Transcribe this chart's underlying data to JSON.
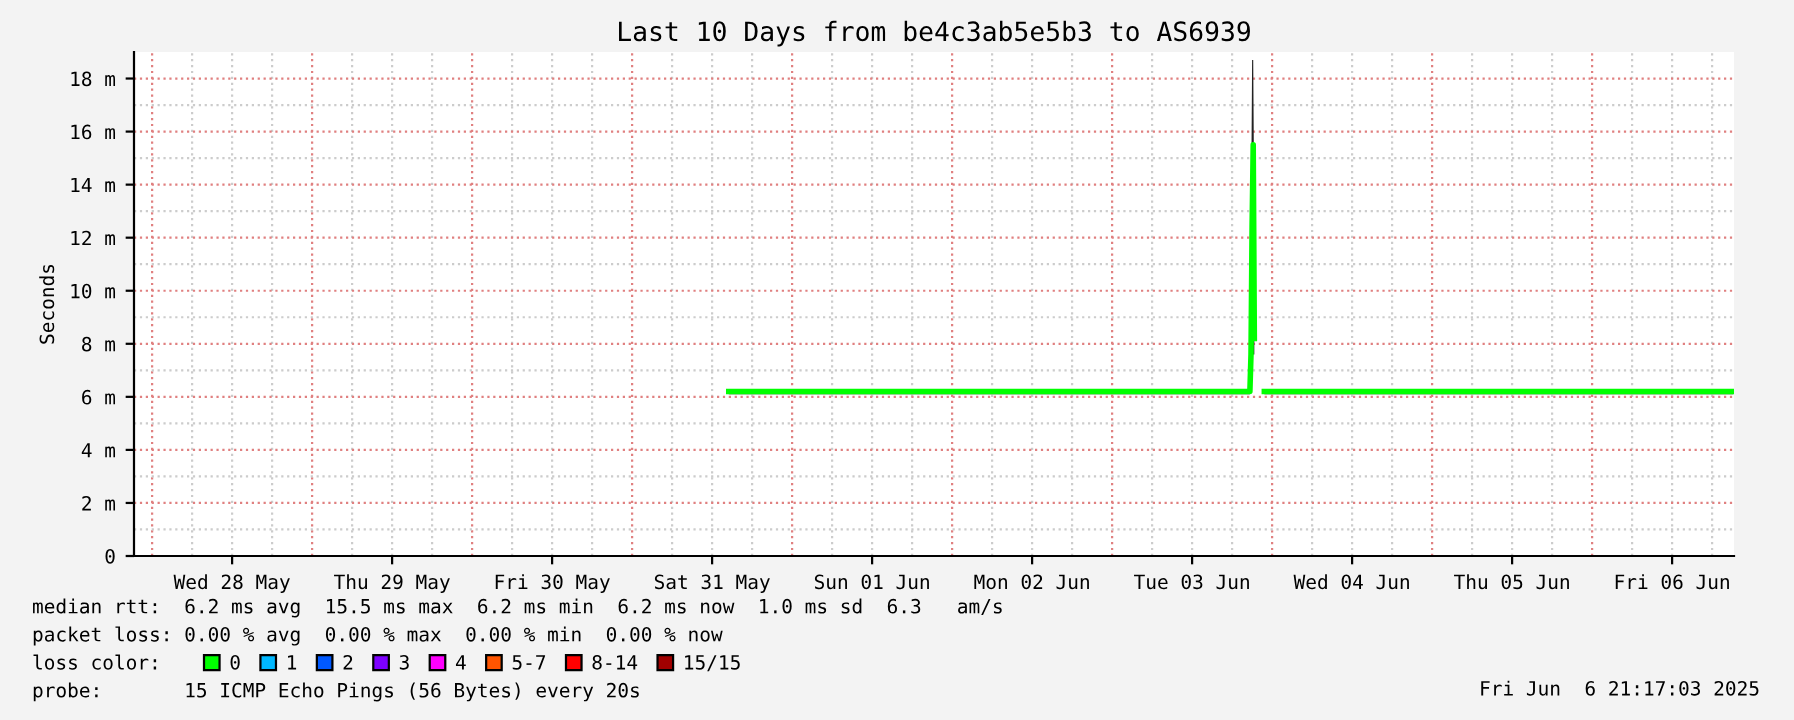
{
  "chart_data": {
    "type": "line",
    "title": "Last 10 Days from be4c3ab5e5b3 to AS6939",
    "ylabel": "Seconds",
    "x": [
      "2025-05-31T14:30",
      "2025-06-01T06:00",
      "2025-06-01T18:00",
      "2025-06-02T06:00",
      "2025-06-02T18:00",
      "2025-06-03T06:00",
      "2025-06-03T20:40",
      "2025-06-03T20:50",
      "2025-06-03T21:00",
      "2025-06-03T21:10",
      "2025-06-03T21:20",
      "2025-06-03T21:40",
      "2025-06-03T22:50",
      "2025-06-04T12:00",
      "2025-06-05T00:00",
      "2025-06-05T12:00",
      "2025-06-06T00:00",
      "2025-06-06T12:00",
      "2025-06-06T21:10"
    ],
    "series": [
      {
        "name": "0",
        "color": "#00ff00",
        "values": [
          6.2,
          6.2,
          6.2,
          6.2,
          6.2,
          6.2,
          6.2,
          7.6,
          12.5,
          15.5,
          8.2,
          null,
          6.2,
          6.2,
          6.2,
          6.2,
          6.2,
          6.2,
          6.2
        ],
        "lower": [
          6.1,
          6.1,
          6.1,
          6.1,
          6.1,
          6.1,
          6.1,
          7.5,
          7.6,
          7.6,
          7.6,
          null,
          6.1,
          6.1,
          6.1,
          6.1,
          6.1,
          6.1,
          6.1
        ],
        "upper": [
          6.3,
          6.3,
          6.3,
          6.3,
          6.3,
          6.3,
          6.3,
          12.5,
          18.7,
          18.7,
          12.5,
          null,
          6.3,
          6.3,
          6.3,
          6.3,
          6.3,
          6.3,
          6.3
        ]
      },
      {
        "name": "1",
        "color": "#00b8ff",
        "values": [
          null,
          null,
          null,
          null,
          null,
          null,
          null,
          null,
          null,
          null,
          null,
          null,
          null,
          null,
          null,
          null,
          null,
          null,
          null
        ]
      },
      {
        "name": "2",
        "color": "#0059ff",
        "values": [
          null,
          null,
          null,
          null,
          null,
          null,
          null,
          null,
          null,
          null,
          null,
          null,
          null,
          null,
          null,
          null,
          null,
          null,
          null
        ]
      },
      {
        "name": "3",
        "color": "#7e00ff",
        "values": [
          null,
          null,
          null,
          null,
          null,
          null,
          null,
          null,
          null,
          null,
          null,
          null,
          null,
          null,
          null,
          null,
          null,
          null,
          null
        ]
      },
      {
        "name": "4",
        "color": "#ff00ff",
        "values": [
          null,
          null,
          null,
          null,
          null,
          null,
          null,
          null,
          null,
          null,
          null,
          null,
          null,
          null,
          null,
          null,
          null,
          null,
          null
        ]
      },
      {
        "name": "5-7",
        "color": "#ff5500",
        "values": [
          null,
          null,
          null,
          null,
          null,
          null,
          null,
          null,
          null,
          null,
          null,
          null,
          null,
          null,
          null,
          null,
          null,
          null,
          null
        ]
      },
      {
        "name": "8-14",
        "color": "#ff0000",
        "values": [
          null,
          null,
          null,
          null,
          null,
          null,
          null,
          null,
          null,
          null,
          null,
          null,
          null,
          null,
          null,
          null,
          null,
          null,
          null
        ]
      },
      {
        "name": "15/15",
        "color": "#a10000",
        "values": [
          null,
          null,
          null,
          null,
          null,
          null,
          null,
          null,
          null,
          null,
          null,
          null,
          null,
          null,
          null,
          null,
          null,
          null,
          null
        ]
      }
    ],
    "legend": "bottom",
    "legend_title": "loss color:",
    "xlim": [
      "2025-05-27T21:17",
      "2025-06-06T21:17"
    ],
    "xticks": [
      {
        "value": "2025-05-28T12:00",
        "label": "Wed 28 May"
      },
      {
        "value": "2025-05-29T12:00",
        "label": "Thu 29 May"
      },
      {
        "value": "2025-05-30T12:00",
        "label": "Fri 30 May"
      },
      {
        "value": "2025-05-31T12:00",
        "label": "Sat 31 May"
      },
      {
        "value": "2025-06-01T12:00",
        "label": "Sun 01 Jun"
      },
      {
        "value": "2025-06-02T12:00",
        "label": "Mon 02 Jun"
      },
      {
        "value": "2025-06-03T12:00",
        "label": "Tue 03 Jun"
      },
      {
        "value": "2025-06-04T12:00",
        "label": "Wed 04 Jun"
      },
      {
        "value": "2025-06-05T12:00",
        "label": "Thu 05 Jun"
      },
      {
        "value": "2025-06-06T12:00",
        "label": "Fri 06 Jun"
      }
    ],
    "ylim": [
      0,
      19
    ],
    "yticks": [
      0,
      {
        "value": 2,
        "label": "2 m"
      },
      {
        "value": 4,
        "label": "4 m"
      },
      {
        "value": 6,
        "label": "6 m"
      },
      {
        "value": 8,
        "label": "8 m"
      },
      {
        "value": 10,
        "label": "10 m"
      },
      {
        "value": 12,
        "label": "12 m"
      },
      {
        "value": 14,
        "label": "14 m"
      },
      {
        "value": 16,
        "label": "16 m"
      },
      {
        "value": 18,
        "label": "18 m"
      }
    ],
    "grid": true,
    "marker": "none",
    "line_style": "solid",
    "annotations": [
      "median rtt:  6.2 ms avg  15.5 ms max  6.2 ms min  6.2 ms now  1.0 ms sd  6.3   am/s",
      "packet loss: 0.00 % avg  0.00 % max  0.00 % min  0.00 % now",
      "probe:       15 ICMP Echo Pings (56 Bytes) every 20s",
      "Fri Jun  6 21:17:03 2025"
    ]
  }
}
